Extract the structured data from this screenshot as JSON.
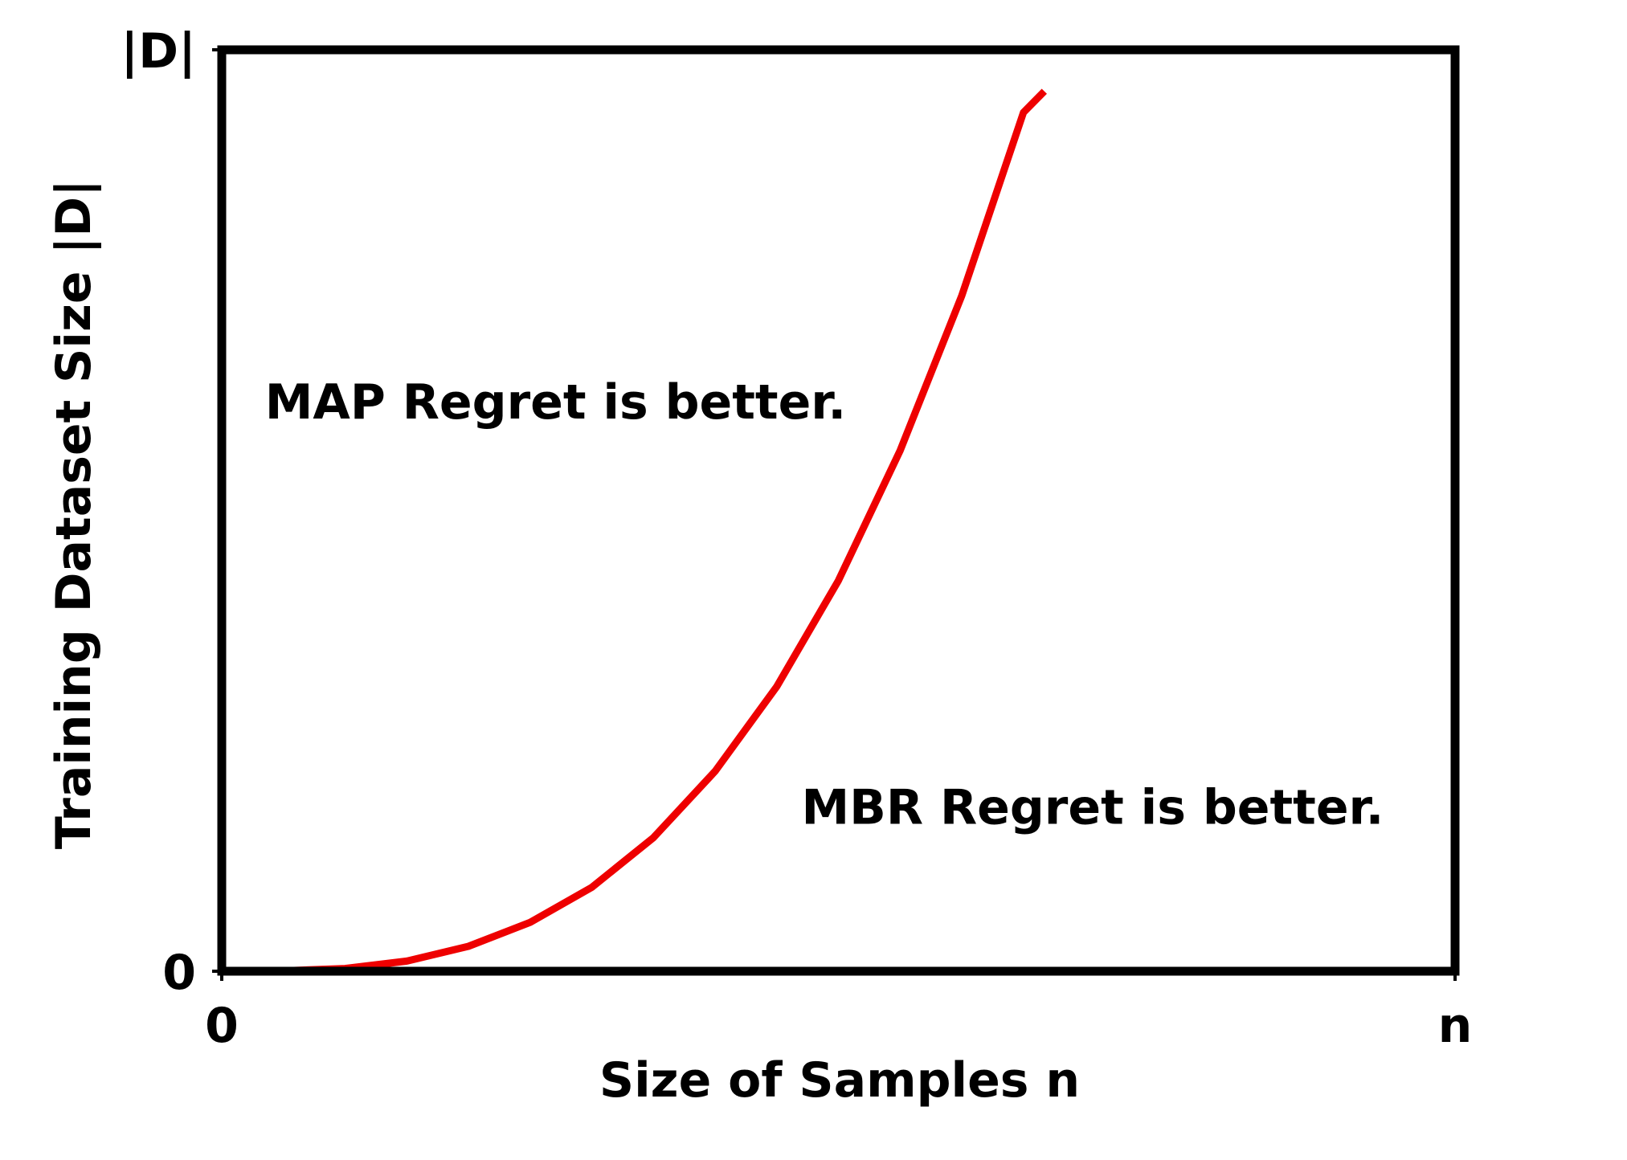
{
  "chart_data": {
    "type": "line",
    "title": "",
    "xlabel": "Size of Samples n",
    "ylabel": "Training Dataset Size |D|",
    "x_ticks": [
      {
        "value": 0,
        "label": "0"
      },
      {
        "value": 1,
        "label": "n"
      }
    ],
    "y_ticks": [
      {
        "value": 0,
        "label": "0"
      },
      {
        "value": 1,
        "label": "|D|"
      }
    ],
    "xlim": [
      0,
      1
    ],
    "ylim": [
      0,
      1
    ],
    "grid": false,
    "legend": "none",
    "series": [
      {
        "color": "#ee0000",
        "x": [
          0.0,
          0.05,
          0.1,
          0.15,
          0.2,
          0.25,
          0.3,
          0.35,
          0.4,
          0.45,
          0.5,
          0.55,
          0.6,
          0.65,
          0.667
        ],
        "y": [
          0.0,
          0.0004,
          0.003,
          0.011,
          0.027,
          0.053,
          0.091,
          0.145,
          0.217,
          0.309,
          0.424,
          0.565,
          0.733,
          0.932,
          0.955
        ]
      }
    ],
    "annotations": [
      {
        "text": "MAP Regret is better.",
        "x": 0.035,
        "y": 0.6
      },
      {
        "text": "MBR Regret is better.",
        "x": 0.47,
        "y": 0.16
      }
    ]
  }
}
